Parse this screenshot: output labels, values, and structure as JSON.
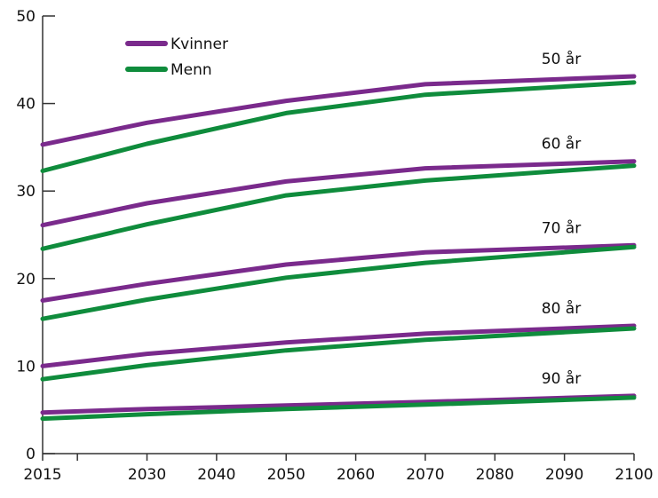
{
  "chart_data": {
    "type": "line",
    "title": "",
    "xlabel": "",
    "ylabel": "",
    "xlim": [
      2015,
      2100
    ],
    "ylim": [
      0,
      50
    ],
    "grid": false,
    "legend_position": "top-left",
    "x_ticks": [
      2015,
      2030,
      2040,
      2050,
      2060,
      2070,
      2080,
      2090,
      2100
    ],
    "x_minor_ticks": [
      2020
    ],
    "y_ticks": [
      0,
      10,
      20,
      30,
      40,
      50
    ],
    "x": [
      2015,
      2030,
      2050,
      2070,
      2100
    ],
    "legend": [
      {
        "name": "Kvinner",
        "color": "#7a2a8c"
      },
      {
        "name": "Menn",
        "color": "#0f8c3c"
      }
    ],
    "series": [
      {
        "group": "50 år",
        "name": "Kvinner",
        "color": "#7a2a8c",
        "values": [
          35.3,
          37.8,
          40.3,
          42.2,
          43.1
        ]
      },
      {
        "group": "50 år",
        "name": "Menn",
        "color": "#0f8c3c",
        "values": [
          32.3,
          35.4,
          38.9,
          41.0,
          42.4
        ]
      },
      {
        "group": "60 år",
        "name": "Kvinner",
        "color": "#7a2a8c",
        "values": [
          26.1,
          28.6,
          31.1,
          32.6,
          33.4
        ]
      },
      {
        "group": "60 år",
        "name": "Menn",
        "color": "#0f8c3c",
        "values": [
          23.4,
          26.2,
          29.5,
          31.2,
          32.9
        ]
      },
      {
        "group": "70 år",
        "name": "Kvinner",
        "color": "#7a2a8c",
        "values": [
          17.5,
          19.4,
          21.6,
          23.0,
          23.8
        ]
      },
      {
        "group": "70 år",
        "name": "Menn",
        "color": "#0f8c3c",
        "values": [
          15.4,
          17.6,
          20.1,
          21.8,
          23.6
        ]
      },
      {
        "group": "80 år",
        "name": "Kvinner",
        "color": "#7a2a8c",
        "values": [
          10.0,
          11.4,
          12.7,
          13.7,
          14.6
        ]
      },
      {
        "group": "80 år",
        "name": "Menn",
        "color": "#0f8c3c",
        "values": [
          8.5,
          10.1,
          11.8,
          13.0,
          14.3
        ]
      },
      {
        "group": "90 år",
        "name": "Kvinner",
        "color": "#7a2a8c",
        "values": [
          4.7,
          5.1,
          5.5,
          5.9,
          6.6
        ]
      },
      {
        "group": "90 år",
        "name": "Menn",
        "color": "#0f8c3c",
        "values": [
          4.0,
          4.5,
          5.1,
          5.6,
          6.4
        ]
      }
    ],
    "annotations": [
      "50 år",
      "60 år",
      "70 år",
      "80 år",
      "90 år"
    ]
  }
}
